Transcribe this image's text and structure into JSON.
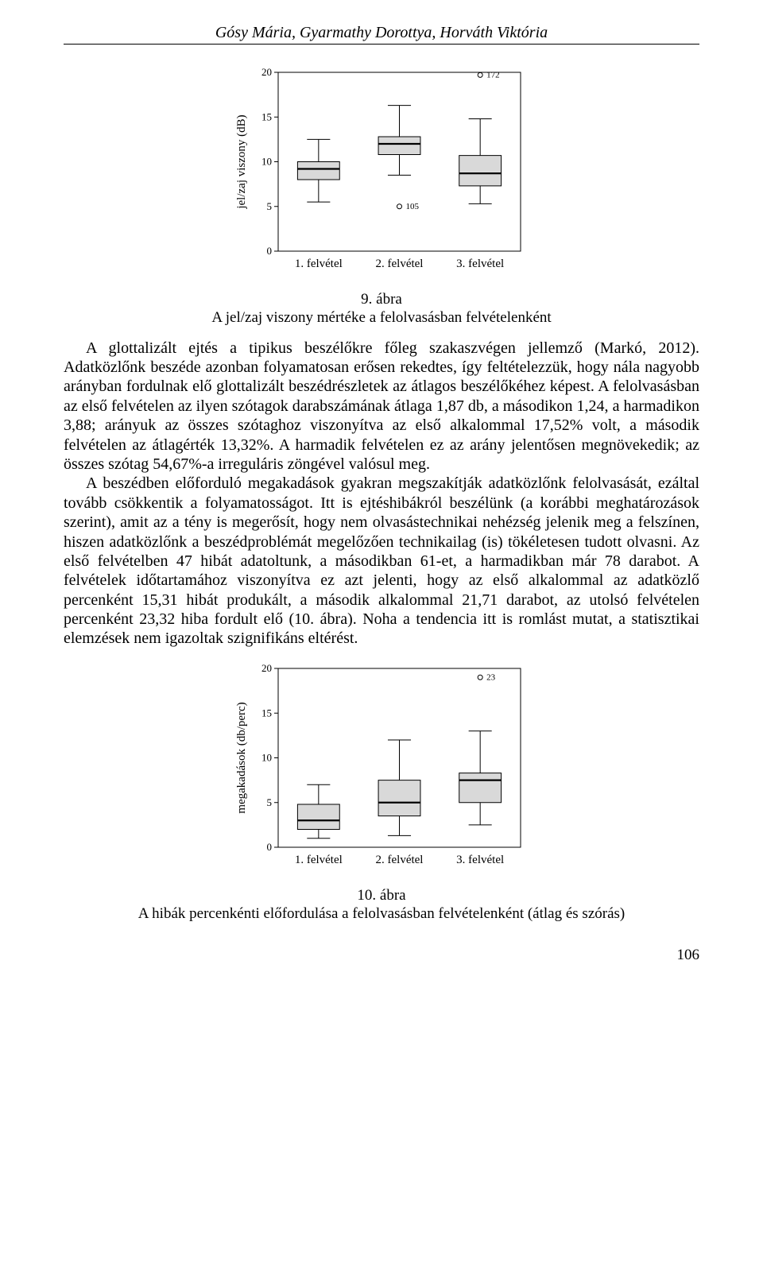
{
  "header": {
    "authors": "Gósy Mária, Gyarmathy Dorottya, Horváth Viktória"
  },
  "chart1": {
    "type": "boxplot",
    "y_title": "jel/zaj viszony (dB)",
    "ylim": [
      0,
      20
    ],
    "yticks": [
      0,
      5,
      10,
      15,
      20
    ],
    "categories": [
      "1. felvétel",
      "2. felvétel",
      "3. felvétel"
    ],
    "boxes": [
      {
        "min": 5.5,
        "q1": 8.0,
        "median": 9.2,
        "q3": 10.0,
        "max": 12.5
      },
      {
        "min": 8.5,
        "q1": 10.8,
        "median": 12.0,
        "q3": 12.8,
        "max": 16.3
      },
      {
        "min": 5.3,
        "q1": 7.3,
        "median": 8.7,
        "q3": 10.7,
        "max": 14.8
      }
    ],
    "outliers": [
      {
        "category": 1,
        "value": 5.0,
        "label": "105"
      },
      {
        "category": 2,
        "value": 19.7,
        "label": "172"
      }
    ],
    "box_fill": "#d9d9d9",
    "line_color": "#000000",
    "bg": "#ffffff"
  },
  "caption1": {
    "num": "9. ábra",
    "text": "A jel/zaj viszony mértéke a felolvasásban felvételenként"
  },
  "para1": "A glottalizált ejtés a tipikus beszélőkre főleg szakaszvégen jellemző (Markó, 2012). Adatközlőnk beszéde azonban folyamatosan erősen rekedtes, így feltételezzük, hogy nála nagyobb arányban fordulnak elő glottalizált beszédrészletek az átlagos beszélőkéhez képest. A felolvasásban az első felvételen az ilyen szótagok darabszámának átlaga 1,87 db, a másodikon 1,24, a harmadikon 3,88; arányuk az összes szótaghoz viszonyítva az első alkalommal 17,52% volt, a második felvételen az átlagérték 13,32%. A harmadik felvételen ez az arány jelentősen megnövekedik; az összes szótag 54,67%-a irreguláris zöngével valósul meg.",
  "para2": "A beszédben előforduló megakadások gyakran megszakítják adatközlőnk felolvasását, ezáltal tovább csökkentik a folyamatosságot. Itt is ejtéshibákról beszélünk (a korábbi meghatározások szerint), amit az a tény is megerősít, hogy nem olvasástechnikai nehézség jelenik meg a felszínen, hiszen adatközlőnk a beszédproblémát megelőzően technikailag (is) tökéletesen tudott olvasni. Az első felvételben 47 hibát adatoltunk, a másodikban 61-et, a harmadikban már 78 darabot. A felvételek időtartamához viszonyítva ez azt jelenti, hogy az első alkalommal az adatközlő percenként 15,31 hibát produkált, a második alkalommal 21,71 darabot, az utolsó felvételen percenként 23,32 hiba fordult elő (10. ábra). Noha a tendencia itt is romlást mutat, a statisztikai elemzések nem igazoltak szignifikáns eltérést.",
  "chart2": {
    "type": "boxplot",
    "y_title": "megakadások (db/perc)",
    "ylim": [
      0,
      20
    ],
    "yticks": [
      0,
      5,
      10,
      15,
      20
    ],
    "categories": [
      "1. felvétel",
      "2. felvétel",
      "3. felvétel"
    ],
    "boxes": [
      {
        "min": 1.0,
        "q1": 2.0,
        "median": 3.0,
        "q3": 4.8,
        "max": 7.0
      },
      {
        "min": 1.3,
        "q1": 3.5,
        "median": 5.0,
        "q3": 7.5,
        "max": 12.0
      },
      {
        "min": 2.5,
        "q1": 5.0,
        "median": 7.5,
        "q3": 8.3,
        "max": 13.0
      }
    ],
    "outliers": [
      {
        "category": 2,
        "value": 19.0,
        "label": "23"
      }
    ],
    "box_fill": "#d9d9d9",
    "line_color": "#000000",
    "bg": "#ffffff"
  },
  "caption2": {
    "num": "10. ábra",
    "text": "A hibák percenkénti előfordulása a felolvasásban felvételenként (átlag és szórás)"
  },
  "page_number": "106"
}
